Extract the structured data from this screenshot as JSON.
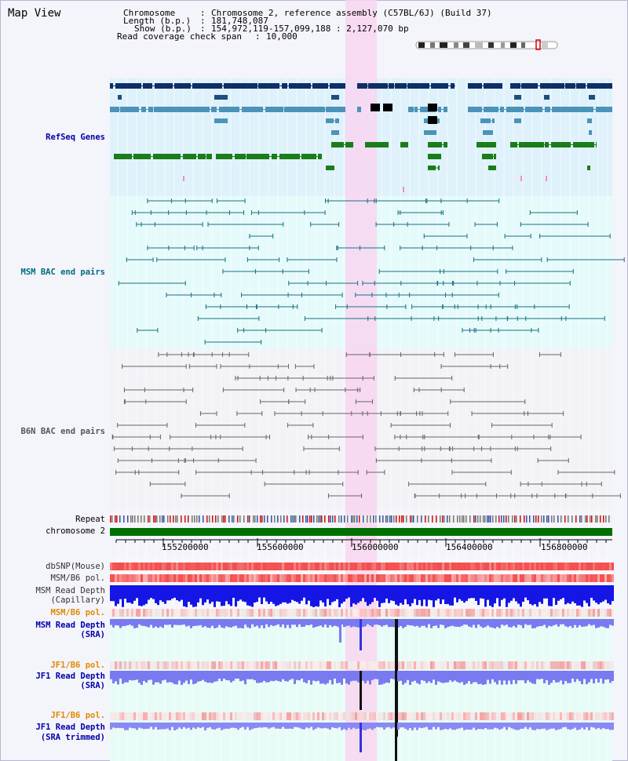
{
  "window": {
    "title": "Map View"
  },
  "info": {
    "chromosome_key": "Chromosome",
    "chromosome_value": "Chromosome 2, reference assembly (C57BL/6J) (Build 37)",
    "length_key": "Length (b.p.)",
    "length_value": "181,748,087",
    "show_key": "Show (b.p.)",
    "show_value": "154,972,119-157,099,188 : 2,127,070 bp",
    "span_key": "Read coverage check span",
    "span_value": "10,000"
  },
  "tracks": {
    "refseq": "RefSeq Genes",
    "msm_bac": "MSM BAC end pairs",
    "b6n_bac": "B6N BAC end pairs",
    "repeat": "Repeat",
    "chromosome": "chromosome 2",
    "dbsnp": "dbSNP(Mouse)",
    "msm_b6_pol_1": "MSM/B6 pol.",
    "msm_depth_cap_1": "MSM Read Depth",
    "msm_depth_cap_2": "(Capillary)",
    "msm_b6_pol_2": "MSM/B6 pol.",
    "msm_depth_sra_1": "MSM Read Depth",
    "msm_depth_sra_2": "(SRA)",
    "jf1_b6_pol_1": "JF1/B6 pol.",
    "jf1_depth_sra_1": "JF1 Read Depth",
    "jf1_depth_sra_2": "(SRA)",
    "jf1_b6_pol_2": "JF1/B6 pol.",
    "jf1_depth_trim_1": "JF1 Read Depth",
    "jf1_depth_trim_2": "(SRA trimmed)"
  },
  "axis": {
    "ticks": [
      "155200000",
      "155600000",
      "156000000",
      "156400000",
      "156800000"
    ]
  },
  "colors": {
    "refseq_bg": "#dff1fb",
    "msm_bac_bg": "#e5fafa",
    "b6n_bac_bg": "#f2f2f7",
    "highlight": "#f8d6f0",
    "chromosome_bar": "#007000",
    "depth_blue": "#1515e6",
    "label_blue": "#0000aa",
    "label_orange": "#e08a00",
    "label_teal": "#006b80"
  }
}
